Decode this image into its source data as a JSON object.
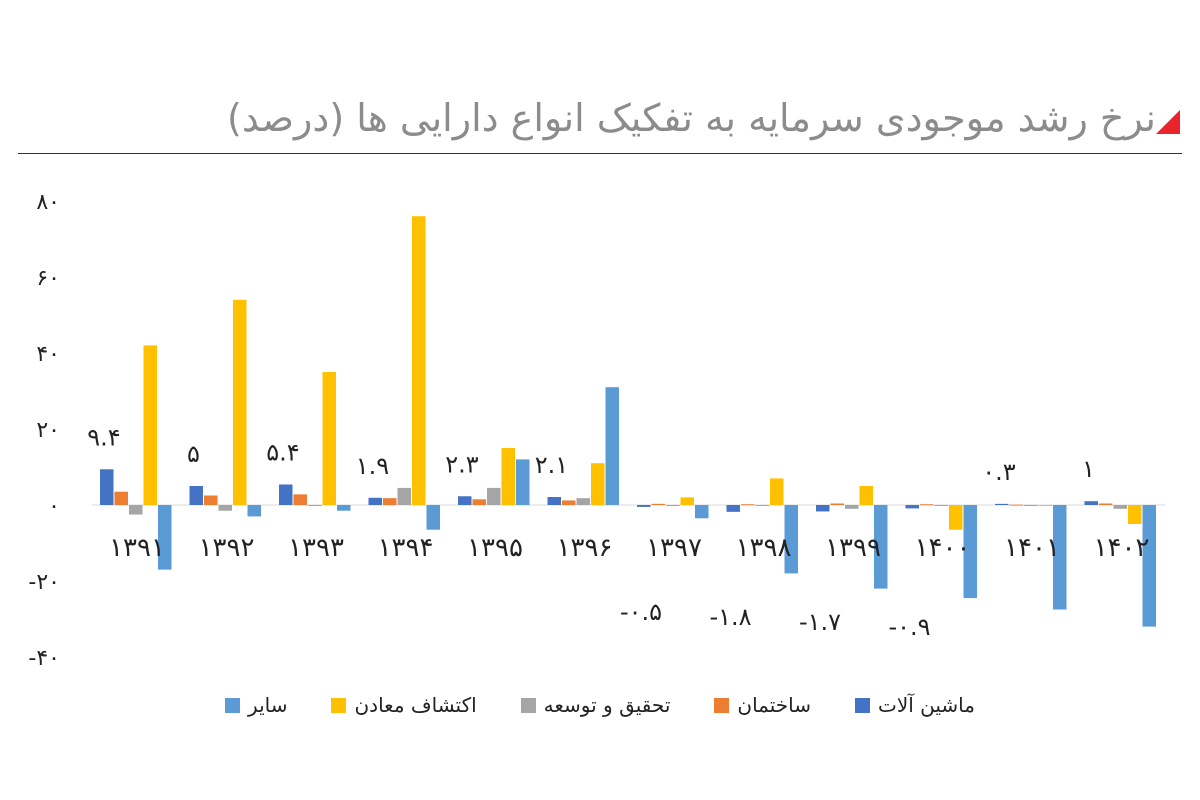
{
  "title": "نرخ رشد موجودی سرمایه به تفکیک انواع دارایی ها (درصد)",
  "colors": {
    "series": [
      "#4472c4",
      "#ed7d31",
      "#a5a5a5",
      "#ffc000",
      "#5b9bd5"
    ],
    "title_accent": "#e8252c"
  },
  "chart_data": {
    "type": "bar",
    "categories": [
      "۱۳۹۱",
      "۱۳۹۲",
      "۱۳۹۳",
      "۱۳۹۴",
      "۱۳۹۵",
      "۱۳۹۶",
      "۱۳۹۷",
      "۱۳۹۸",
      "۱۳۹۹",
      "۱۴۰۰",
      "۱۴۰۱",
      "۱۴۰۲"
    ],
    "series": [
      {
        "name": "ماشین آلات",
        "values": [
          9.4,
          5,
          5.4,
          1.9,
          2.3,
          2.1,
          -0.5,
          -1.8,
          -1.7,
          -0.9,
          0.3,
          1
        ],
        "labels": [
          "۹.۴",
          "۵",
          "۵.۴",
          "۱.۹",
          "۲.۳",
          "۲.۱",
          "-۰.۵",
          "-۱.۸",
          "-۱.۷",
          "-۰.۹",
          "۰.۳",
          "۱"
        ]
      },
      {
        "name": "ساختمان",
        "values": [
          3.5,
          2.5,
          2.8,
          1.8,
          1.5,
          1.2,
          0.3,
          0.2,
          0.4,
          0.2,
          0.1,
          0.4
        ]
      },
      {
        "name": "تحقیق و توسعه",
        "values": [
          -2.5,
          -1.5,
          0,
          4.5,
          4.5,
          1.8,
          0,
          0,
          -1,
          0,
          0,
          -1
        ]
      },
      {
        "name": "اکتشاف معادن",
        "values": [
          42,
          54,
          35,
          76,
          15,
          11,
          2,
          7,
          5,
          -6.5,
          0,
          -5
        ]
      },
      {
        "name": "سایر",
        "values": [
          -17,
          -3,
          -1.5,
          -6.5,
          12,
          31,
          -3.5,
          -18,
          -22,
          -24.5,
          -27.5,
          -32
        ]
      }
    ],
    "ylim": [
      -40,
      80
    ],
    "y_ticks": [
      80,
      60,
      40,
      20,
      0,
      -20,
      -40
    ],
    "y_tick_labels": [
      "۸۰",
      "۶۰",
      "۴۰",
      "۲۰",
      "۰",
      "-۲۰",
      "-۴۰"
    ],
    "grid": false,
    "legend_position": "bottom"
  }
}
